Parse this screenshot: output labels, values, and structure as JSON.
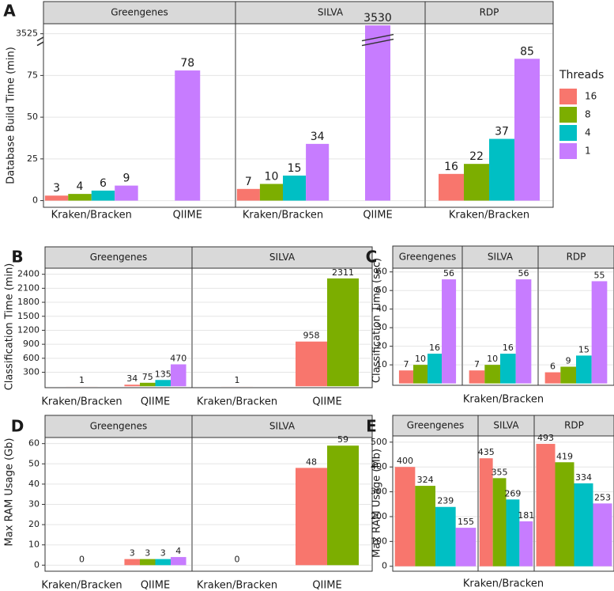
{
  "legend": {
    "title": "Threads",
    "entries": [
      {
        "name": "16",
        "color": "#F8766D"
      },
      {
        "name": "8",
        "color": "#7CAE00"
      },
      {
        "name": "4",
        "color": "#00BFC4"
      },
      {
        "name": "1",
        "color": "#C77CFF"
      }
    ]
  },
  "chart_data": [
    {
      "type": "bar",
      "panel": "A",
      "ylabel": "Database Build Time (min)",
      "ylim": [
        -4,
        3531
      ],
      "yticks": [
        0,
        25,
        50,
        75,
        3525
      ],
      "axis_break": true,
      "grid": true,
      "facets": [
        {
          "title": "Greengenes",
          "categories": [
            "Kraken/Bracken",
            "QIIME"
          ],
          "values": [
            [
              3,
              4,
              6,
              9
            ],
            [
              null,
              null,
              null,
              78
            ]
          ]
        },
        {
          "title": "SILVA",
          "categories": [
            "Kraken/Bracken",
            "QIIME"
          ],
          "values": [
            [
              7,
              10,
              15,
              34
            ],
            [
              null,
              null,
              null,
              3530
            ]
          ]
        },
        {
          "title": "RDP",
          "categories": [
            "Kraken/Bracken"
          ],
          "values": [
            [
              16,
              22,
              37,
              85
            ]
          ]
        }
      ]
    },
    {
      "type": "bar",
      "panel": "B",
      "ylabel": "Classification Time (min)",
      "ylim": [
        -30,
        2530
      ],
      "yticks": [
        300,
        600,
        900,
        1200,
        1500,
        1800,
        2100,
        2400
      ],
      "grid": true,
      "facets": [
        {
          "title": "Greengenes",
          "categories": [
            "Kraken/Bracken",
            "QIIME"
          ],
          "values": [
            [
              1
            ],
            [
              34,
              75,
              135,
              470
            ]
          ]
        },
        {
          "title": "SILVA",
          "categories": [
            "Kraken/Bracken",
            "QIIME"
          ],
          "values": [
            [
              1
            ],
            [
              958,
              2311
            ]
          ]
        }
      ]
    },
    {
      "type": "bar",
      "panel": "C",
      "ylabel": "Classification Time (sec)",
      "xlabel": "Kraken/Bracken",
      "ylim": [
        -1,
        62
      ],
      "yticks": [
        10,
        20,
        30,
        40,
        50,
        60
      ],
      "grid": true,
      "facets": [
        {
          "title": "Greengenes",
          "categories": [
            null
          ],
          "values": [
            [
              7,
              10,
              16,
              56
            ]
          ]
        },
        {
          "title": "SILVA",
          "categories": [
            null
          ],
          "values": [
            [
              7,
              10,
              16,
              56
            ]
          ]
        },
        {
          "title": "RDP",
          "categories": [
            null
          ],
          "values": [
            [
              6,
              9,
              15,
              55
            ]
          ]
        }
      ]
    },
    {
      "type": "bar",
      "panel": "D",
      "ylabel": "Max RAM Usage (Gb)",
      "ylim": [
        -3,
        63
      ],
      "yticks": [
        0,
        10,
        20,
        30,
        40,
        50,
        60
      ],
      "grid": true,
      "facets": [
        {
          "title": "Greengenes",
          "categories": [
            "Kraken/Bracken",
            "QIIME"
          ],
          "values": [
            [
              0
            ],
            [
              3,
              3,
              3,
              4
            ]
          ]
        },
        {
          "title": "SILVA",
          "categories": [
            "Kraken/Bracken",
            "QIIME"
          ],
          "values": [
            [
              0
            ],
            [
              48,
              59
            ]
          ]
        }
      ]
    },
    {
      "type": "bar",
      "panel": "E",
      "ylabel": "Max RAM Usage (Mb)",
      "xlabel": "Kraken/Bracken",
      "ylim": [
        -20,
        525
      ],
      "yticks": [
        0,
        100,
        200,
        300,
        400,
        500
      ],
      "grid": true,
      "facets": [
        {
          "title": "Greengenes",
          "categories": [
            null
          ],
          "values": [
            [
              400,
              324,
              239,
              155
            ]
          ]
        },
        {
          "title": "SILVA",
          "categories": [
            null
          ],
          "values": [
            [
              435,
              355,
              269,
              181
            ]
          ]
        },
        {
          "title": "RDP",
          "categories": [
            null
          ],
          "values": [
            [
              493,
              419,
              334,
              253
            ]
          ]
        }
      ]
    }
  ]
}
